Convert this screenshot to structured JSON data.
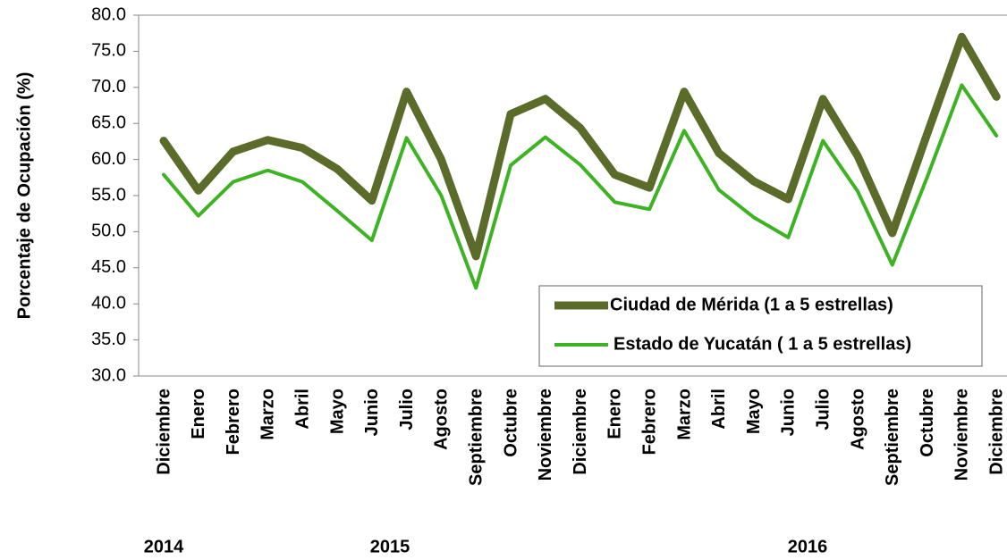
{
  "chart_data": {
    "type": "line",
    "y_label": "Porcentaje de Ocupación (%)",
    "categories": [
      "Diciembre",
      "Enero",
      "Febrero",
      "Marzo",
      "Abril",
      "Mayo",
      "Junio",
      "Julio",
      "Agosto",
      "Septiembre",
      "Octubre",
      "Noviembre",
      "Diciembre",
      "Enero",
      "Febrero",
      "Marzo",
      "Abril",
      "Mayo",
      "Junio",
      "Julio",
      "Agosto",
      "Septiembre",
      "Octubre",
      "Noviembre",
      "Diciembre"
    ],
    "year_labels": [
      "2014",
      "2015",
      "2016"
    ],
    "series": [
      {
        "name": "Ciudad de Mérida (1 a 5 estrellas)",
        "color": "#5a6b2a",
        "values": [
          62.6,
          55.7,
          61.1,
          62.7,
          61.6,
          58.7,
          54.3,
          69.4,
          60.0,
          46.6,
          66.3,
          68.4,
          64.4,
          57.9,
          56.1,
          69.4,
          60.9,
          57.0,
          54.5,
          68.4,
          60.5,
          49.8,
          63.5,
          77.0,
          68.7
        ]
      },
      {
        "name": "Estado de Yucatán ( 1 a 5 estrellas)",
        "color": "#3db323",
        "values": [
          57.9,
          52.2,
          56.9,
          58.5,
          56.9,
          52.9,
          48.8,
          63.0,
          55.0,
          42.2,
          59.2,
          63.1,
          59.3,
          54.1,
          53.1,
          64.0,
          55.8,
          52.0,
          49.2,
          62.6,
          55.6,
          45.4,
          57.5,
          70.3,
          63.3
        ]
      }
    ],
    "ylim": [
      30,
      80
    ],
    "yticks": [
      {
        "value": 30,
        "label": "30.0"
      },
      {
        "value": 35,
        "label": "35.0"
      },
      {
        "value": 40,
        "label": "40.0"
      },
      {
        "value": 45,
        "label": "45.0"
      },
      {
        "value": 50,
        "label": "50.0"
      },
      {
        "value": 55,
        "label": "55.0"
      },
      {
        "value": 60,
        "label": "60.0"
      },
      {
        "value": 65,
        "label": "65.0"
      },
      {
        "value": 70,
        "label": "70.0"
      },
      {
        "value": 75,
        "label": "75.0"
      },
      {
        "value": 80,
        "label": "80.0"
      }
    ]
  }
}
